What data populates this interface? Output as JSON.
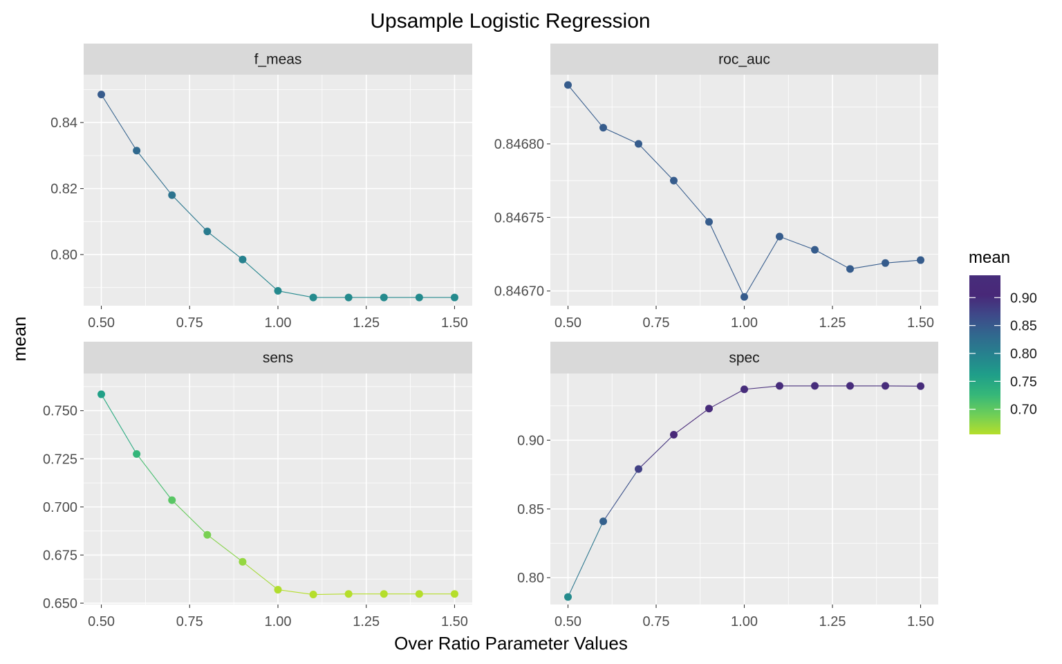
{
  "chart_data": {
    "type": "line",
    "title": "Upsample Logistic Regression",
    "xlabel": "Over Ratio Parameter Values",
    "ylabel": "mean",
    "x": [
      0.5,
      0.6,
      0.7,
      0.8,
      0.9,
      1.0,
      1.1,
      1.2,
      1.3,
      1.4,
      1.5
    ],
    "x_ticks": [
      "0.50",
      "0.75",
      "1.00",
      "1.25",
      "1.50"
    ],
    "grid": true,
    "legend": {
      "title": "mean",
      "position": "right",
      "type": "colorbar",
      "palette": "viridis",
      "range": [
        0.655,
        0.94
      ],
      "ticks": [
        "0.70",
        "0.75",
        "0.80",
        "0.85",
        "0.90"
      ]
    },
    "panels": [
      {
        "name": "f_meas",
        "values": [
          0.8485,
          0.8315,
          0.818,
          0.807,
          0.7985,
          0.789,
          0.787,
          0.787,
          0.787,
          0.787,
          0.787
        ],
        "ylim": [
          0.7845,
          0.8545
        ],
        "y_ticks": [
          "0.80",
          "0.82",
          "0.84"
        ]
      },
      {
        "name": "roc_auc",
        "values": [
          0.84684,
          0.846811,
          0.8468,
          0.846775,
          0.846747,
          0.846696,
          0.846737,
          0.846728,
          0.846715,
          0.846719,
          0.846721
        ],
        "ylim": [
          0.84669,
          0.846847
        ],
        "y_ticks": [
          "0.84670",
          "0.84675",
          "0.84680"
        ]
      },
      {
        "name": "sens",
        "values": [
          0.7585,
          0.7275,
          0.7035,
          0.6855,
          0.6715,
          0.657,
          0.6545,
          0.6548,
          0.6548,
          0.6548,
          0.6548
        ],
        "ylim": [
          0.6493,
          0.7693
        ],
        "y_ticks": [
          "0.650",
          "0.675",
          "0.700",
          "0.725",
          "0.750"
        ]
      },
      {
        "name": "spec",
        "values": [
          0.786,
          0.841,
          0.879,
          0.904,
          0.923,
          0.937,
          0.9395,
          0.9395,
          0.9395,
          0.9395,
          0.9393
        ],
        "ylim": [
          0.7805,
          0.9485
        ],
        "y_ticks": [
          "0.80",
          "0.85",
          "0.90"
        ]
      }
    ]
  }
}
